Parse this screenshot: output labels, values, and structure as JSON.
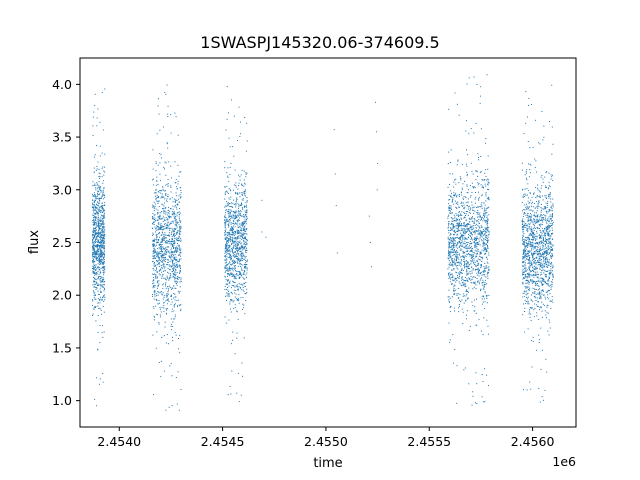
{
  "chart_data": {
    "type": "scatter",
    "title": "1SWASPJ145320.06-374609.5",
    "xlabel": "time",
    "ylabel": "flux",
    "x_offset_label": "1e6",
    "xlim": [
      2453810,
      2456210
    ],
    "ylim": [
      0.75,
      4.25
    ],
    "x_ticks": [
      2.454,
      2.4545,
      2.455,
      2.4555,
      2.456
    ],
    "x_tick_labels": [
      "2.4540",
      "2.4545",
      "2.4550",
      "2.4555",
      "2.4560"
    ],
    "y_ticks": [
      1.0,
      1.5,
      2.0,
      2.5,
      3.0,
      3.5,
      4.0
    ],
    "y_tick_labels": [
      "1.0",
      "1.5",
      "2.0",
      "2.5",
      "3.0",
      "3.5",
      "4.0"
    ],
    "grid": false,
    "marker_color": "#1f77b4",
    "series": [
      {
        "observing_seasons": [
          {
            "x_range": [
              2453870,
              2453930
            ],
            "points": 900,
            "median_flux": 2.5,
            "core_range": [
              2.0,
              3.2
            ],
            "outlier_range": [
              0.9,
              4.0
            ]
          },
          {
            "x_range": [
              2454160,
              2454300
            ],
            "points": 1100,
            "median_flux": 2.45,
            "core_range": [
              2.0,
              3.3
            ],
            "outlier_range": [
              0.9,
              4.0
            ]
          },
          {
            "x_range": [
              2454510,
              2454620
            ],
            "points": 1000,
            "median_flux": 2.5,
            "core_range": [
              2.0,
              3.1
            ],
            "outlier_range": [
              0.9,
              4.05
            ]
          },
          {
            "x_range": [
              2455590,
              2455790
            ],
            "points": 1400,
            "median_flux": 2.5,
            "core_range": [
              2.0,
              3.2
            ],
            "outlier_range": [
              0.92,
              4.1
            ]
          },
          {
            "x_range": [
              2455950,
              2456100
            ],
            "points": 1300,
            "median_flux": 2.45,
            "core_range": [
              1.95,
              3.1
            ],
            "outlier_range": [
              0.95,
              4.0
            ]
          }
        ],
        "sparse_points": [
          {
            "x": 2454690,
            "y": 2.9
          },
          {
            "x": 2454690,
            "y": 2.6
          },
          {
            "x": 2454710,
            "y": 2.55
          },
          {
            "x": 2455040,
            "y": 3.57
          },
          {
            "x": 2455045,
            "y": 3.15
          },
          {
            "x": 2455050,
            "y": 2.85
          },
          {
            "x": 2455055,
            "y": 2.4
          },
          {
            "x": 2455210,
            "y": 2.75
          },
          {
            "x": 2455215,
            "y": 2.5
          },
          {
            "x": 2455220,
            "y": 2.27
          },
          {
            "x": 2455240,
            "y": 3.83
          },
          {
            "x": 2455245,
            "y": 3.55
          },
          {
            "x": 2455248,
            "y": 3.0
          },
          {
            "x": 2455250,
            "y": 3.25
          }
        ]
      }
    ]
  }
}
